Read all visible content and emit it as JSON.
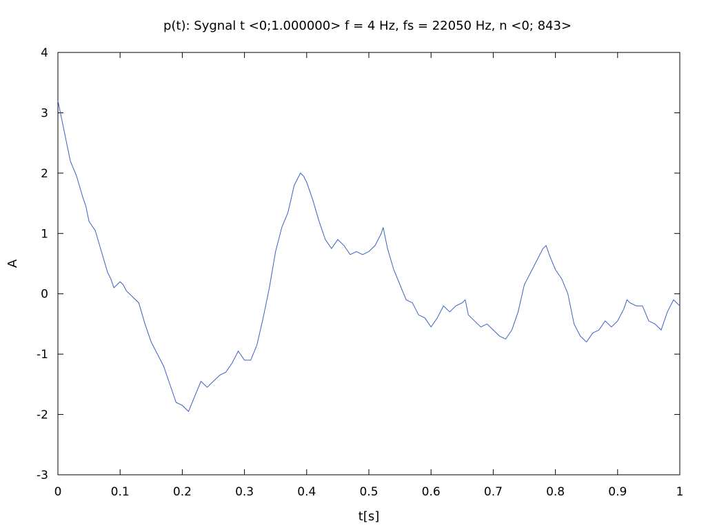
{
  "chart_data": {
    "type": "line",
    "title": "p(t): Sygnal t <0;1.000000> f = 4 Hz, fs = 22050 Hz, n <0; 843>",
    "xlabel": "t[s]",
    "ylabel": "A",
    "xlim": [
      0,
      1
    ],
    "ylim": [
      -3,
      4
    ],
    "x_ticks": [
      0,
      0.1,
      0.2,
      0.3,
      0.4,
      0.5,
      0.6,
      0.7,
      0.8,
      0.9,
      1
    ],
    "x_tick_labels": [
      "0",
      "0.1",
      "0.2",
      "0.3",
      "0.4",
      "0.5",
      "0.6",
      "0.7",
      "0.8",
      "0.9",
      "1"
    ],
    "y_ticks": [
      -3,
      -2,
      -1,
      0,
      1,
      2,
      3,
      4
    ],
    "y_tick_labels": [
      "-3",
      "-2",
      "-1",
      "0",
      "1",
      "2",
      "3",
      "4"
    ],
    "grid": false,
    "line_color": "#3a5fc0",
    "series": [
      {
        "x": [
          0,
          0.01,
          0.02,
          0.03,
          0.04,
          0.045,
          0.05,
          0.06,
          0.07,
          0.08,
          0.085,
          0.09,
          0.1,
          0.105,
          0.11,
          0.12,
          0.13,
          0.14,
          0.15,
          0.16,
          0.17,
          0.18,
          0.19,
          0.2,
          0.21,
          0.22,
          0.23,
          0.24,
          0.25,
          0.26,
          0.27,
          0.28,
          0.29,
          0.3,
          0.31,
          0.32,
          0.33,
          0.34,
          0.35,
          0.36,
          0.37,
          0.38,
          0.39,
          0.395,
          0.4,
          0.41,
          0.42,
          0.43,
          0.44,
          0.45,
          0.46,
          0.47,
          0.48,
          0.49,
          0.5,
          0.51,
          0.52,
          0.523,
          0.53,
          0.54,
          0.55,
          0.56,
          0.57,
          0.58,
          0.59,
          0.6,
          0.61,
          0.62,
          0.63,
          0.64,
          0.65,
          0.655,
          0.66,
          0.67,
          0.68,
          0.69,
          0.7,
          0.71,
          0.72,
          0.73,
          0.74,
          0.75,
          0.76,
          0.77,
          0.78,
          0.785,
          0.79,
          0.8,
          0.81,
          0.82,
          0.83,
          0.84,
          0.85,
          0.86,
          0.87,
          0.88,
          0.89,
          0.9,
          0.91,
          0.915,
          0.92,
          0.93,
          0.94,
          0.95,
          0.96,
          0.97,
          0.98,
          0.99,
          1.0
        ],
        "y": [
          3.2,
          2.7,
          2.2,
          1.95,
          1.6,
          1.45,
          1.2,
          1.05,
          0.7,
          0.35,
          0.25,
          0.1,
          0.2,
          0.15,
          0.05,
          -0.05,
          -0.15,
          -0.5,
          -0.8,
          -1.0,
          -1.2,
          -1.5,
          -1.8,
          -1.85,
          -1.95,
          -1.7,
          -1.45,
          -1.55,
          -1.45,
          -1.35,
          -1.3,
          -1.15,
          -0.95,
          -1.1,
          -1.1,
          -0.85,
          -0.4,
          0.1,
          0.7,
          1.1,
          1.35,
          1.8,
          2.0,
          1.95,
          1.85,
          1.55,
          1.2,
          0.9,
          0.75,
          0.9,
          0.8,
          0.65,
          0.7,
          0.65,
          0.7,
          0.8,
          1.0,
          1.1,
          0.75,
          0.4,
          0.15,
          -0.1,
          -0.15,
          -0.35,
          -0.4,
          -0.55,
          -0.4,
          -0.2,
          -0.3,
          -0.2,
          -0.15,
          -0.1,
          -0.35,
          -0.45,
          -0.55,
          -0.5,
          -0.6,
          -0.7,
          -0.75,
          -0.6,
          -0.3,
          0.15,
          0.35,
          0.55,
          0.75,
          0.8,
          0.65,
          0.4,
          0.25,
          0.0,
          -0.5,
          -0.7,
          -0.8,
          -0.65,
          -0.6,
          -0.45,
          -0.55,
          -0.45,
          -0.25,
          -0.1,
          -0.15,
          -0.2,
          -0.2,
          -0.45,
          -0.5,
          -0.6,
          -0.3,
          -0.1,
          -0.2
        ]
      }
    ]
  }
}
